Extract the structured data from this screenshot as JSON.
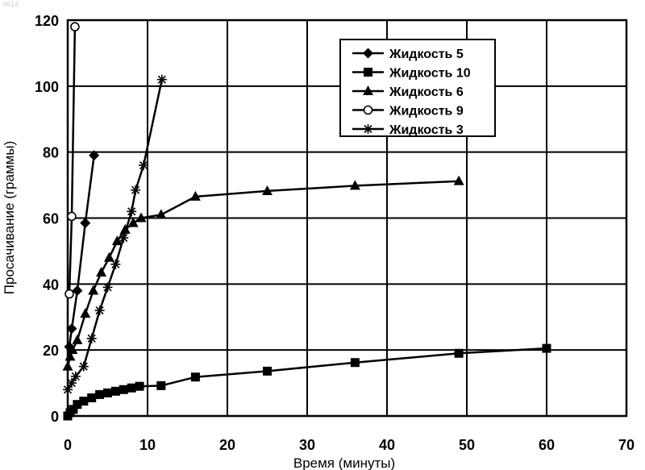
{
  "corner_mark": "4614",
  "chart_data": {
    "type": "line",
    "title": "",
    "xlabel": "Время (минуты)",
    "ylabel": "Просачивание (граммы)",
    "xlim": [
      0,
      70
    ],
    "ylim": [
      0,
      120
    ],
    "x_ticks": [
      0,
      10,
      20,
      30,
      40,
      50,
      60,
      70
    ],
    "y_ticks": [
      0,
      20,
      40,
      60,
      80,
      100,
      120
    ],
    "grid": true,
    "legend_position": "top-right",
    "series": [
      {
        "name": "Жидкость 5",
        "marker": "diamond",
        "points": [
          [
            0.2,
            21
          ],
          [
            0.5,
            26.5
          ],
          [
            1.2,
            38
          ],
          [
            2.2,
            58.5
          ],
          [
            3.3,
            79
          ]
        ]
      },
      {
        "name": "Жидкость 10",
        "marker": "square",
        "points": [
          [
            0,
            0
          ],
          [
            0.3,
            1
          ],
          [
            0.7,
            2
          ],
          [
            1.2,
            3.5
          ],
          [
            2,
            4.5
          ],
          [
            3,
            5.5
          ],
          [
            4,
            6.5
          ],
          [
            5,
            7
          ],
          [
            6,
            7.5
          ],
          [
            7,
            8
          ],
          [
            8,
            8.5
          ],
          [
            9,
            9
          ],
          [
            11.7,
            9.2
          ],
          [
            16,
            11.8
          ],
          [
            25,
            13.6
          ],
          [
            36,
            16.2
          ],
          [
            49,
            19
          ],
          [
            60,
            20.5
          ]
        ]
      },
      {
        "name": "Жидкость 6",
        "marker": "triangle",
        "points": [
          [
            0,
            15
          ],
          [
            0.3,
            18
          ],
          [
            0.6,
            20
          ],
          [
            1.2,
            23
          ],
          [
            2.2,
            31
          ],
          [
            3.2,
            38
          ],
          [
            4.2,
            43.5
          ],
          [
            5.2,
            48
          ],
          [
            6.2,
            53
          ],
          [
            7.2,
            56.5
          ],
          [
            8.2,
            58.5
          ],
          [
            9.2,
            60
          ],
          [
            11.7,
            61
          ],
          [
            16,
            66.5
          ],
          [
            25,
            68.2
          ],
          [
            36,
            69.8
          ],
          [
            49,
            71.2
          ]
        ]
      },
      {
        "name": "Жидкость 9",
        "marker": "circle-open",
        "points": [
          [
            0.2,
            37
          ],
          [
            0.5,
            60.5
          ],
          [
            0.9,
            118
          ]
        ]
      },
      {
        "name": "Жидкость 3",
        "marker": "star",
        "points": [
          [
            0,
            8
          ],
          [
            0.5,
            10
          ],
          [
            1,
            12
          ],
          [
            2,
            15
          ],
          [
            3,
            23.5
          ],
          [
            4,
            32
          ],
          [
            5,
            39
          ],
          [
            6,
            46
          ],
          [
            7,
            54
          ],
          [
            8,
            62
          ],
          [
            8.5,
            68.5
          ],
          [
            9.5,
            76
          ],
          [
            11.8,
            102
          ]
        ]
      }
    ]
  }
}
